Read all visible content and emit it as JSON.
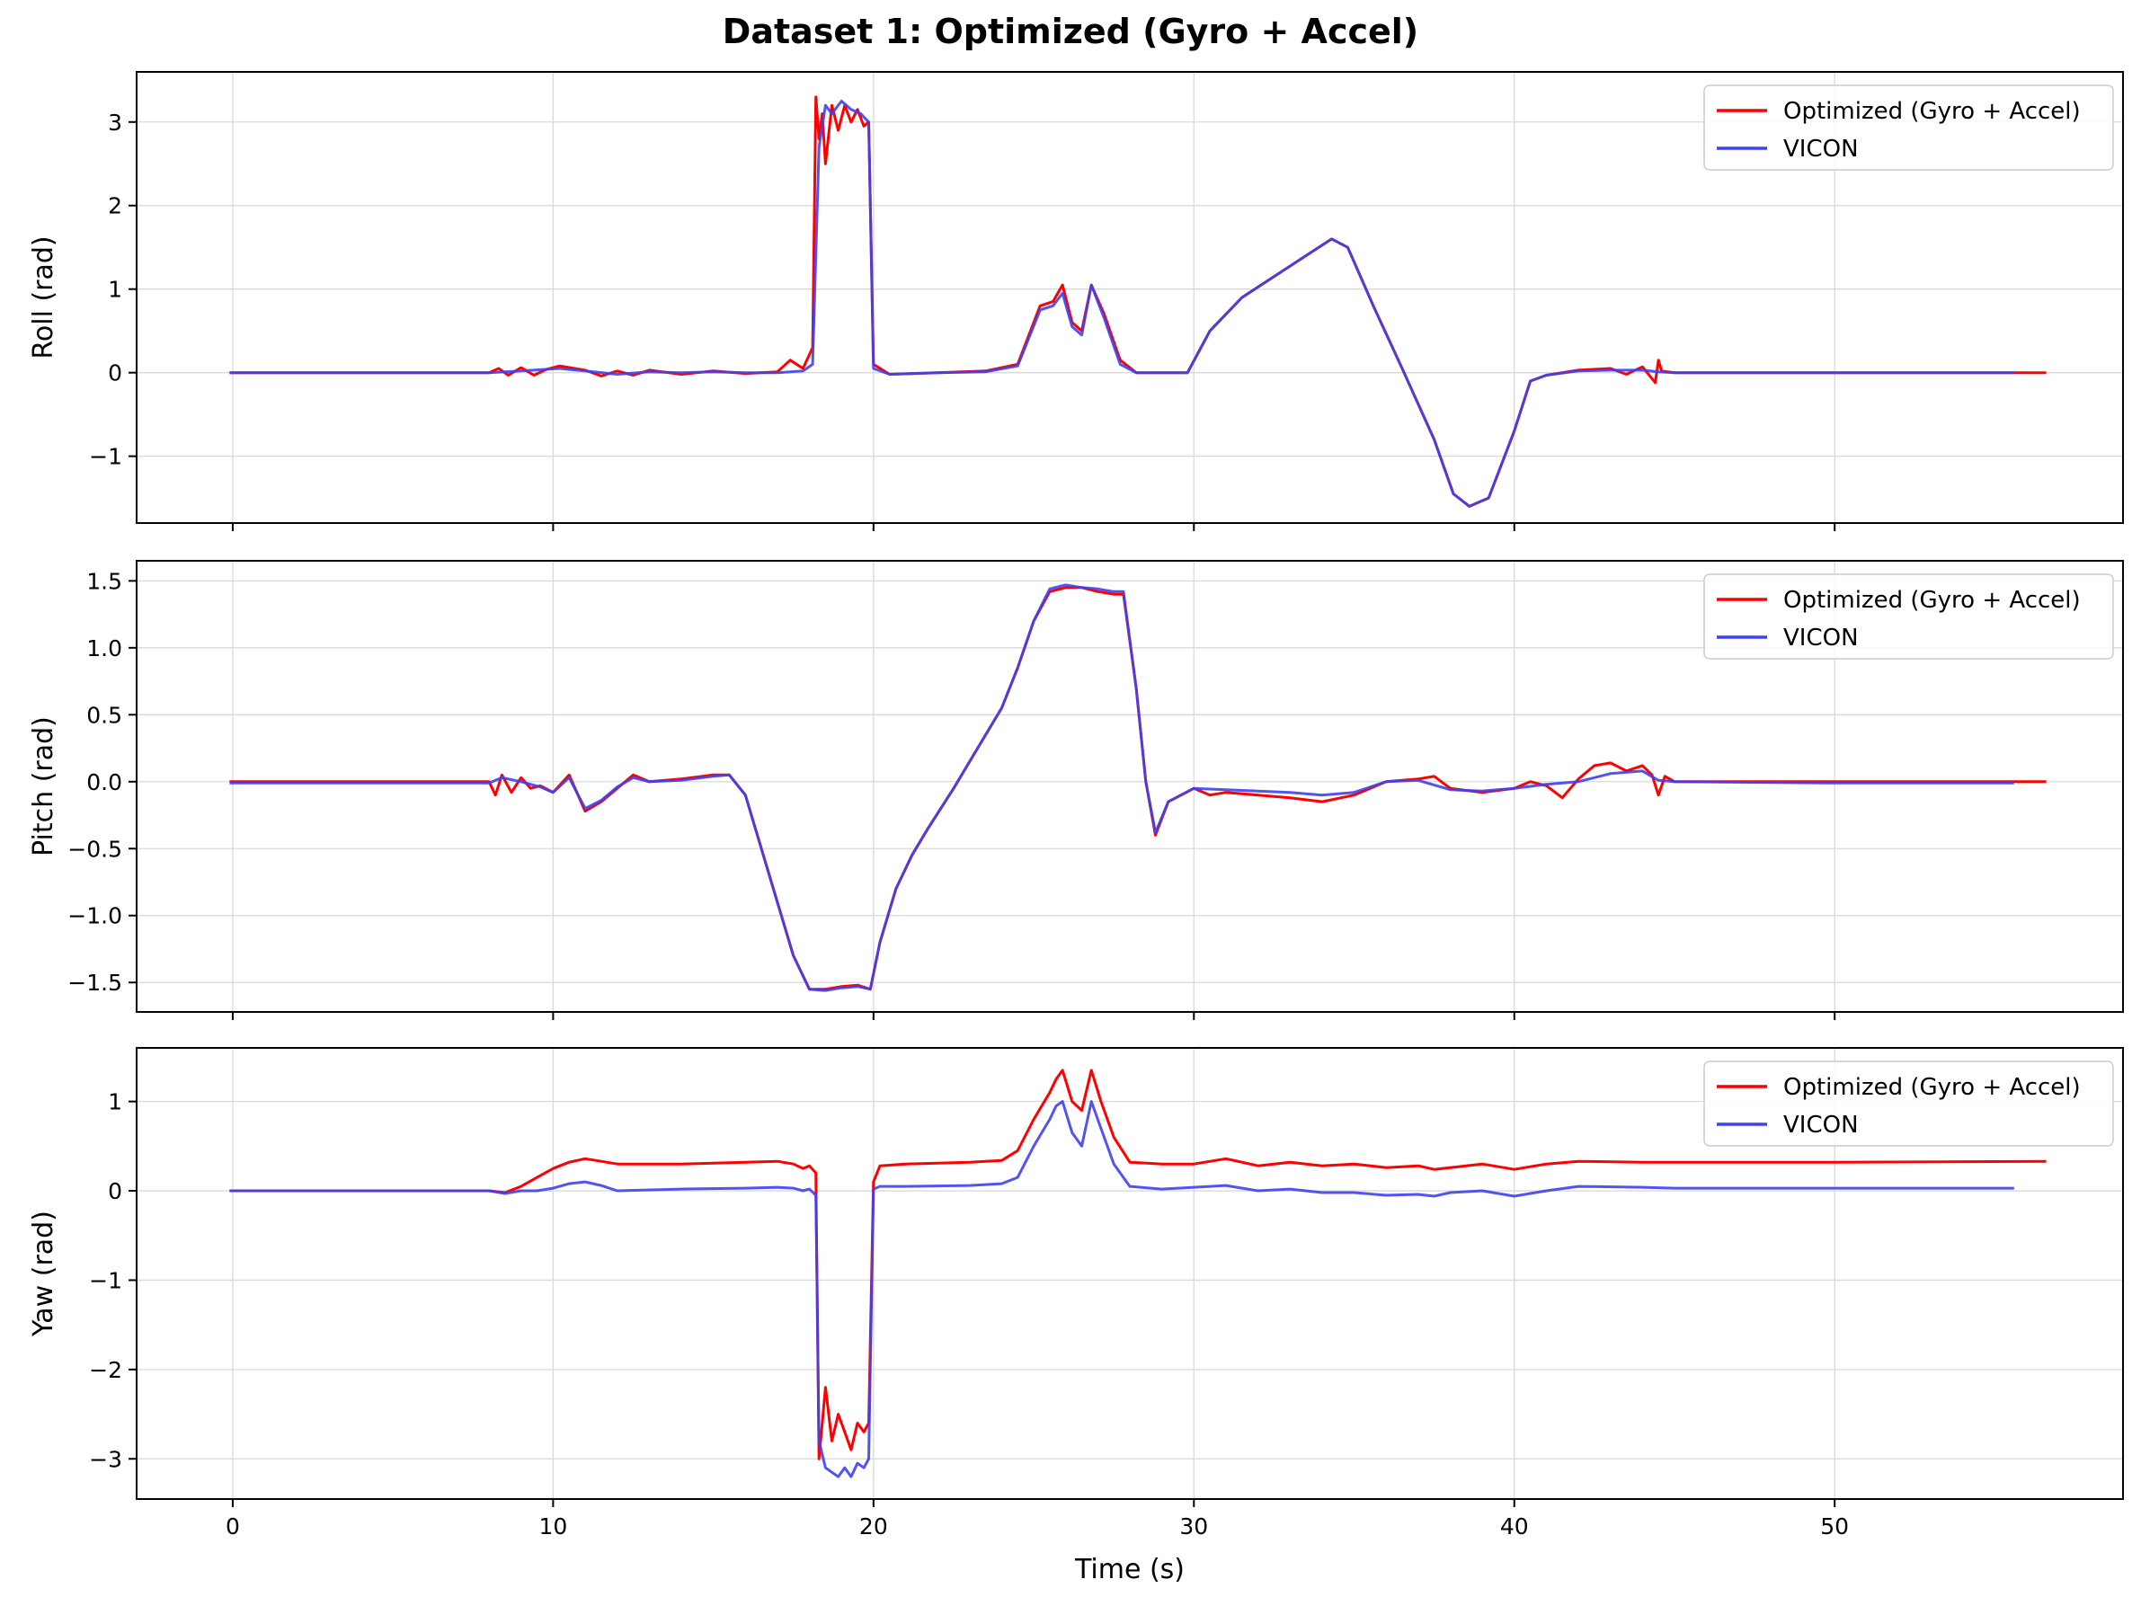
{
  "figure_title": "Dataset 1: Optimized (Gyro + Accel)",
  "colors": {
    "optimized": "#ff0000",
    "vicon": "#4040ee",
    "grid": "#d9d9d9"
  },
  "chart_data": [
    {
      "type": "line",
      "title": "Dataset 1: Optimized (Gyro + Accel)",
      "ylabel": "Roll (rad)",
      "xlabel": "",
      "xlim": [
        -3,
        59
      ],
      "ylim": [
        -1.8,
        3.6
      ],
      "xticks": [
        0,
        10,
        20,
        30,
        40,
        50
      ],
      "yticks": [
        -1,
        0,
        1,
        2,
        3
      ],
      "ytick_labels": [
        "−1",
        "0",
        "1",
        "2",
        "3"
      ],
      "grid": true,
      "legend_position": "top-right",
      "series": [
        {
          "name": "Optimized (Gyro + Accel)",
          "color": "#ff0000",
          "x": [
            -0.1,
            8,
            8.3,
            8.6,
            9,
            9.4,
            9.8,
            10.2,
            11,
            11.5,
            12,
            12.5,
            13,
            14,
            15,
            16,
            17,
            17.4,
            17.8,
            18.1,
            18.2,
            18.3,
            18.4,
            18.5,
            18.7,
            18.9,
            19.1,
            19.3,
            19.5,
            19.7,
            19.85,
            20,
            20.5,
            22,
            23.5,
            24.5,
            25.2,
            25.6,
            25.9,
            26.2,
            26.5,
            26.8,
            27.2,
            27.7,
            28.2,
            29,
            29.8,
            30.5,
            31.5,
            32.5,
            33.5,
            34.3,
            34.8,
            35.6,
            36.5,
            37.5,
            38.1,
            38.6,
            39.2,
            40,
            40.5,
            41,
            42,
            43,
            43.5,
            44,
            44.4,
            44.5,
            44.6,
            45,
            50,
            55,
            56.6
          ],
          "y": [
            0,
            0,
            0.05,
            -0.03,
            0.06,
            -0.03,
            0.04,
            0.08,
            0.03,
            -0.04,
            0.02,
            -0.03,
            0.03,
            -0.02,
            0.02,
            -0.01,
            0.01,
            0.15,
            0.05,
            0.3,
            3.3,
            2.8,
            3.1,
            2.5,
            3.2,
            2.9,
            3.2,
            3.0,
            3.15,
            2.95,
            3.0,
            0.1,
            -0.02,
            0.0,
            0.02,
            0.1,
            0.8,
            0.85,
            1.05,
            0.6,
            0.5,
            1.05,
            0.7,
            0.15,
            0.0,
            0.0,
            0.0,
            0.5,
            0.9,
            1.15,
            1.4,
            1.6,
            1.5,
            0.8,
            0.05,
            -0.8,
            -1.45,
            -1.6,
            -1.5,
            -0.7,
            -0.1,
            -0.03,
            0.03,
            0.05,
            -0.02,
            0.07,
            -0.12,
            0.15,
            0.02,
            0.0,
            0.0,
            0.0,
            0.0
          ]
        },
        {
          "name": "VICON",
          "color": "#4040ee",
          "x": [
            -0.1,
            8,
            9,
            10.2,
            11,
            12,
            13,
            14,
            15,
            16,
            17,
            17.8,
            18.1,
            18.3,
            18.5,
            18.7,
            19,
            19.3,
            19.6,
            19.85,
            20,
            20.5,
            22,
            23.5,
            24.5,
            25.2,
            25.6,
            25.9,
            26.2,
            26.5,
            26.8,
            27.2,
            27.7,
            28.2,
            29,
            29.8,
            30.5,
            31.5,
            32.5,
            33.5,
            34.3,
            34.8,
            35.6,
            36.5,
            37.5,
            38.1,
            38.6,
            39.2,
            40,
            40.5,
            41,
            42,
            43,
            44,
            44.5,
            45,
            50,
            55.6
          ],
          "y": [
            0,
            0,
            0.02,
            0.05,
            0.02,
            -0.02,
            0.01,
            0.0,
            0.01,
            0.0,
            0.0,
            0.02,
            0.1,
            2.7,
            3.2,
            3.1,
            3.25,
            3.15,
            3.1,
            3.0,
            0.05,
            -0.02,
            0.0,
            0.01,
            0.08,
            0.75,
            0.8,
            0.95,
            0.55,
            0.45,
            1.05,
            0.65,
            0.1,
            0.0,
            0.0,
            0.0,
            0.5,
            0.9,
            1.15,
            1.4,
            1.6,
            1.5,
            0.8,
            0.05,
            -0.8,
            -1.45,
            -1.6,
            -1.5,
            -0.7,
            -0.1,
            -0.03,
            0.02,
            0.03,
            0.03,
            0.01,
            0.0,
            0.0,
            0.0
          ]
        }
      ]
    },
    {
      "type": "line",
      "ylabel": "Pitch (rad)",
      "xlabel": "",
      "xlim": [
        -3,
        59
      ],
      "ylim": [
        -1.72,
        1.65
      ],
      "xticks": [
        0,
        10,
        20,
        30,
        40,
        50
      ],
      "yticks": [
        -1.5,
        -1.0,
        -0.5,
        0.0,
        0.5,
        1.0,
        1.5
      ],
      "ytick_labels": [
        "−1.5",
        "−1.0",
        "−0.5",
        "0.0",
        "0.5",
        "1.0",
        "1.5"
      ],
      "grid": true,
      "legend_position": "top-right",
      "series": [
        {
          "name": "Optimized (Gyro + Accel)",
          "color": "#ff0000",
          "x": [
            -0.1,
            8,
            8.2,
            8.4,
            8.7,
            9,
            9.3,
            9.6,
            10,
            10.5,
            11,
            11.5,
            12,
            12.5,
            13,
            14,
            15,
            15.5,
            16,
            16.5,
            17,
            17.5,
            18,
            18.5,
            19,
            19.5,
            19.9,
            20.2,
            20.7,
            21.2,
            21.7,
            22.5,
            23,
            23.5,
            24,
            24.5,
            25,
            25.5,
            26,
            26.5,
            27,
            27.5,
            27.8,
            28.2,
            28.5,
            28.8,
            29.2,
            30,
            30.5,
            31,
            32,
            33,
            34,
            35,
            36,
            37,
            37.5,
            38,
            39,
            40,
            40.5,
            41,
            41.5,
            42,
            42.5,
            43,
            43.5,
            44,
            44.3,
            44.5,
            44.7,
            45,
            50,
            56.6
          ],
          "y": [
            0.0,
            0.0,
            -0.1,
            0.05,
            -0.08,
            0.03,
            -0.05,
            -0.03,
            -0.08,
            0.05,
            -0.22,
            -0.15,
            -0.05,
            0.05,
            0.0,
            0.02,
            0.05,
            0.05,
            -0.1,
            -0.5,
            -0.9,
            -1.3,
            -1.55,
            -1.55,
            -1.53,
            -1.52,
            -1.55,
            -1.2,
            -0.8,
            -0.55,
            -0.35,
            -0.05,
            0.15,
            0.35,
            0.55,
            0.85,
            1.2,
            1.42,
            1.45,
            1.45,
            1.42,
            1.4,
            1.4,
            0.7,
            0.0,
            -0.4,
            -0.15,
            -0.05,
            -0.1,
            -0.08,
            -0.1,
            -0.12,
            -0.15,
            -0.1,
            0.0,
            0.02,
            0.04,
            -0.05,
            -0.08,
            -0.05,
            0.0,
            -0.03,
            -0.12,
            0.02,
            0.12,
            0.14,
            0.08,
            0.12,
            0.05,
            -0.1,
            0.04,
            0.0,
            0.0,
            0.0
          ]
        },
        {
          "name": "VICON",
          "color": "#4040ee",
          "x": [
            -0.1,
            8,
            8.4,
            9,
            9.6,
            10,
            10.5,
            11,
            11.5,
            12,
            12.5,
            13,
            14,
            15,
            15.5,
            16,
            16.5,
            17,
            17.5,
            18,
            18.5,
            19,
            19.5,
            19.9,
            20.2,
            20.7,
            21.2,
            21.7,
            22.5,
            23,
            23.5,
            24,
            24.5,
            25,
            25.5,
            26,
            26.5,
            27,
            27.5,
            27.8,
            28.2,
            28.5,
            28.8,
            29.2,
            30,
            31,
            32,
            33,
            34,
            35,
            36,
            37,
            38,
            39,
            40,
            41,
            42,
            43,
            44,
            44.5,
            45,
            50,
            55.6
          ],
          "y": [
            -0.01,
            -0.01,
            0.03,
            0.0,
            -0.04,
            -0.08,
            0.03,
            -0.2,
            -0.14,
            -0.04,
            0.03,
            0.0,
            0.01,
            0.04,
            0.05,
            -0.1,
            -0.5,
            -0.9,
            -1.3,
            -1.55,
            -1.56,
            -1.54,
            -1.53,
            -1.55,
            -1.2,
            -0.8,
            -0.55,
            -0.35,
            -0.05,
            0.15,
            0.35,
            0.55,
            0.85,
            1.2,
            1.44,
            1.47,
            1.45,
            1.44,
            1.42,
            1.42,
            0.7,
            0.0,
            -0.38,
            -0.15,
            -0.05,
            -0.06,
            -0.07,
            -0.08,
            -0.1,
            -0.08,
            0.0,
            0.01,
            -0.06,
            -0.07,
            -0.05,
            -0.02,
            0.0,
            0.06,
            0.08,
            0.01,
            0.0,
            -0.01,
            -0.01
          ]
        }
      ]
    },
    {
      "type": "line",
      "ylabel": "Yaw (rad)",
      "xlabel": "Time (s)",
      "xlim": [
        -3,
        59
      ],
      "ylim": [
        -3.45,
        1.6
      ],
      "xticks": [
        0,
        10,
        20,
        30,
        40,
        50
      ],
      "xtick_labels": [
        "0",
        "10",
        "20",
        "30",
        "40",
        "50"
      ],
      "yticks": [
        -3,
        -2,
        -1,
        0,
        1
      ],
      "ytick_labels": [
        "−3",
        "−2",
        "−1",
        "0",
        "1"
      ],
      "grid": true,
      "legend_position": "top-right",
      "series": [
        {
          "name": "Optimized (Gyro + Accel)",
          "color": "#ff0000",
          "x": [
            -0.1,
            8,
            8.5,
            9,
            9.5,
            10,
            10.5,
            11,
            11.5,
            12,
            14,
            16,
            17,
            17.5,
            17.8,
            18,
            18.2,
            18.3,
            18.5,
            18.7,
            18.9,
            19.1,
            19.3,
            19.5,
            19.7,
            19.85,
            20,
            20.2,
            21,
            23,
            24,
            24.5,
            25,
            25.5,
            25.7,
            25.9,
            26.2,
            26.5,
            26.8,
            27.1,
            27.5,
            28,
            29,
            30,
            31,
            32,
            33,
            34,
            35,
            36,
            37,
            37.5,
            38,
            39,
            40,
            41,
            42,
            44,
            45,
            50,
            56.6
          ],
          "y": [
            0,
            0,
            -0.02,
            0.05,
            0.15,
            0.25,
            0.32,
            0.36,
            0.33,
            0.3,
            0.3,
            0.32,
            0.33,
            0.3,
            0.25,
            0.28,
            0.2,
            -3.0,
            -2.2,
            -2.8,
            -2.5,
            -2.7,
            -2.9,
            -2.6,
            -2.7,
            -2.6,
            0.1,
            0.28,
            0.3,
            0.32,
            0.34,
            0.45,
            0.8,
            1.1,
            1.25,
            1.35,
            1.0,
            0.9,
            1.35,
            1.0,
            0.6,
            0.32,
            0.3,
            0.3,
            0.36,
            0.28,
            0.32,
            0.28,
            0.3,
            0.26,
            0.28,
            0.24,
            0.26,
            0.3,
            0.24,
            0.3,
            0.33,
            0.32,
            0.32,
            0.32,
            0.33
          ]
        },
        {
          "name": "VICON",
          "color": "#4040ee",
          "x": [
            -0.1,
            8,
            8.5,
            9,
            9.5,
            10,
            10.5,
            11,
            11.5,
            12,
            14,
            16,
            17,
            17.5,
            17.8,
            18,
            18.2,
            18.3,
            18.5,
            18.7,
            18.9,
            19.1,
            19.3,
            19.5,
            19.7,
            19.85,
            20,
            20.2,
            21,
            23,
            24,
            24.5,
            25,
            25.5,
            25.7,
            25.9,
            26.2,
            26.5,
            26.8,
            27.1,
            27.5,
            28,
            29,
            30,
            31,
            32,
            33,
            34,
            35,
            36,
            37,
            37.5,
            38,
            39,
            40,
            41,
            42,
            44,
            45,
            50,
            55.6
          ],
          "y": [
            0,
            0,
            -0.03,
            0.0,
            0.0,
            0.03,
            0.08,
            0.1,
            0.06,
            0.0,
            0.02,
            0.03,
            0.04,
            0.03,
            0.0,
            0.02,
            -0.05,
            -2.8,
            -3.1,
            -3.15,
            -3.2,
            -3.1,
            -3.2,
            -3.05,
            -3.1,
            -3.0,
            0.02,
            0.05,
            0.05,
            0.06,
            0.08,
            0.15,
            0.5,
            0.8,
            0.95,
            1.0,
            0.65,
            0.5,
            1.0,
            0.7,
            0.3,
            0.05,
            0.02,
            0.04,
            0.06,
            0.0,
            0.02,
            -0.02,
            -0.02,
            -0.05,
            -0.04,
            -0.06,
            -0.02,
            0.0,
            -0.06,
            0.0,
            0.05,
            0.04,
            0.03,
            0.03,
            0.03
          ]
        }
      ]
    }
  ]
}
